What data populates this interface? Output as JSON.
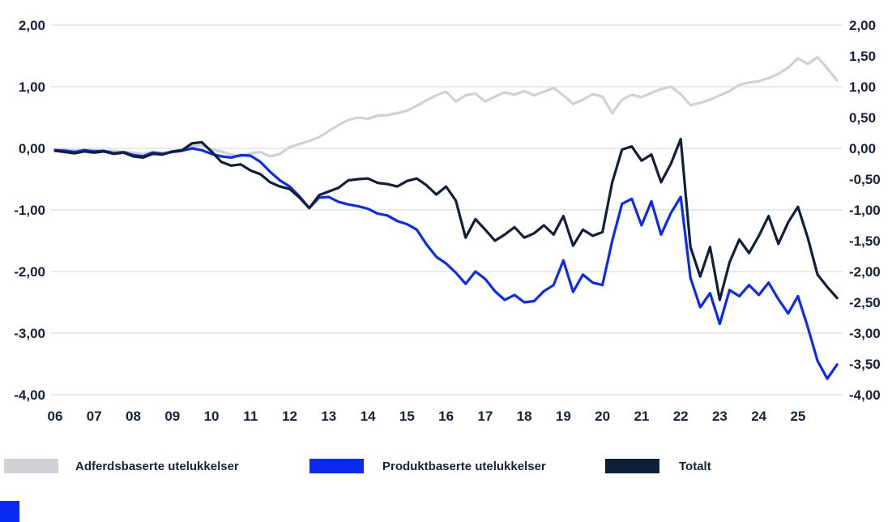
{
  "colors": {
    "axis_label": "#13233d",
    "gridline": "#e3e3e6",
    "background": "#ffffff",
    "accent_square": "#0b2af0"
  },
  "chart_data": {
    "type": "line",
    "title": "",
    "xlabel": "",
    "ylabel": "",
    "grid": "horizontal, at whole numbers only",
    "legend_position": "bottom",
    "x_start": 6.0,
    "x_step": 0.25,
    "x_axis": {
      "min": 6,
      "max": 26.1,
      "tick_labels": [
        "06",
        "07",
        "08",
        "09",
        "10",
        "11",
        "12",
        "13",
        "14",
        "15",
        "16",
        "17",
        "18",
        "19",
        "20",
        "21",
        "22",
        "23",
        "24",
        "25"
      ]
    },
    "y_axis": {
      "ylim": [
        -4.0,
        2.0
      ],
      "gridline_values": [
        2,
        1,
        0,
        -1,
        -2,
        -3,
        -4
      ],
      "left_tick_values": [
        2,
        1,
        0,
        -1,
        -2,
        -3,
        -4
      ],
      "left_tick_labels": [
        "2,00",
        "1,00",
        "0,00",
        "-1,00",
        "-2,00",
        "-3,00",
        "-4,00"
      ],
      "right_tick_values": [
        2,
        1.5,
        1,
        0.5,
        0,
        -0.5,
        -1,
        -1.5,
        -2,
        -2.5,
        -3,
        -3.5,
        -4
      ],
      "right_tick_labels": [
        "2,00",
        "1,50",
        "1,00",
        "0,50",
        "0,00",
        "-0,50",
        "-1,00",
        "-1,50",
        "-2,00",
        "-2,50",
        "-3,00",
        "-3,50",
        "-4,00"
      ]
    },
    "series": [
      {
        "name": "Adferdsbaserte utelukkelser",
        "color": "#cfd1d6",
        "values": [
          -0.02,
          -0.02,
          -0.04,
          -0.02,
          -0.03,
          -0.05,
          -0.04,
          -0.06,
          -0.07,
          -0.09,
          -0.06,
          -0.07,
          -0.05,
          -0.02,
          0.03,
          0.05,
          -0.02,
          -0.05,
          -0.1,
          -0.13,
          -0.08,
          -0.06,
          -0.13,
          -0.09,
          0.02,
          0.07,
          0.12,
          0.18,
          0.28,
          0.38,
          0.46,
          0.5,
          0.48,
          0.53,
          0.54,
          0.57,
          0.61,
          0.69,
          0.78,
          0.86,
          0.92,
          0.76,
          0.86,
          0.89,
          0.76,
          0.84,
          0.91,
          0.87,
          0.93,
          0.86,
          0.92,
          0.98,
          0.86,
          0.72,
          0.79,
          0.88,
          0.84,
          0.57,
          0.79,
          0.87,
          0.83,
          0.9,
          0.96,
          1.0,
          0.88,
          0.7,
          0.74,
          0.79,
          0.86,
          0.93,
          1.03,
          1.07,
          1.09,
          1.14,
          1.21,
          1.31,
          1.46,
          1.37,
          1.48,
          1.3,
          1.1
        ]
      },
      {
        "name": "Produktbaserte utelukkelser",
        "color": "#0b2af0",
        "values": [
          -0.03,
          -0.04,
          -0.06,
          -0.03,
          -0.05,
          -0.04,
          -0.08,
          -0.06,
          -0.11,
          -0.13,
          -0.07,
          -0.09,
          -0.06,
          -0.04,
          0.0,
          -0.03,
          -0.09,
          -0.13,
          -0.15,
          -0.11,
          -0.12,
          -0.22,
          -0.38,
          -0.52,
          -0.62,
          -0.78,
          -0.97,
          -0.8,
          -0.79,
          -0.87,
          -0.91,
          -0.94,
          -0.98,
          -1.06,
          -1.09,
          -1.18,
          -1.23,
          -1.32,
          -1.56,
          -1.76,
          -1.87,
          -2.02,
          -2.2,
          -2.0,
          -2.12,
          -2.32,
          -2.46,
          -2.38,
          -2.5,
          -2.48,
          -2.32,
          -2.22,
          -1.82,
          -2.33,
          -2.05,
          -2.18,
          -2.22,
          -1.5,
          -0.9,
          -0.82,
          -1.25,
          -0.86,
          -1.4,
          -1.05,
          -0.79,
          -2.1,
          -2.58,
          -2.35,
          -2.85,
          -2.3,
          -2.4,
          -2.22,
          -2.38,
          -2.18,
          -2.45,
          -2.68,
          -2.4,
          -2.9,
          -3.45,
          -3.74,
          -3.51
        ]
      },
      {
        "name": "Totalt",
        "color": "#101f3a",
        "values": [
          -0.04,
          -0.06,
          -0.08,
          -0.05,
          -0.07,
          -0.05,
          -0.09,
          -0.07,
          -0.13,
          -0.15,
          -0.09,
          -0.1,
          -0.05,
          -0.03,
          0.08,
          0.1,
          -0.05,
          -0.22,
          -0.28,
          -0.26,
          -0.36,
          -0.42,
          -0.55,
          -0.62,
          -0.66,
          -0.8,
          -0.97,
          -0.76,
          -0.7,
          -0.64,
          -0.52,
          -0.5,
          -0.49,
          -0.56,
          -0.58,
          -0.62,
          -0.53,
          -0.49,
          -0.6,
          -0.75,
          -0.62,
          -0.85,
          -1.45,
          -1.15,
          -1.32,
          -1.5,
          -1.4,
          -1.28,
          -1.45,
          -1.38,
          -1.25,
          -1.4,
          -1.1,
          -1.58,
          -1.32,
          -1.42,
          -1.36,
          -0.55,
          -0.02,
          0.03,
          -0.2,
          -0.1,
          -0.55,
          -0.25,
          0.15,
          -1.6,
          -2.08,
          -1.6,
          -2.46,
          -1.85,
          -1.48,
          -1.7,
          -1.42,
          -1.1,
          -1.55,
          -1.2,
          -0.95,
          -1.45,
          -2.05,
          -2.25,
          -2.43
        ]
      }
    ]
  }
}
